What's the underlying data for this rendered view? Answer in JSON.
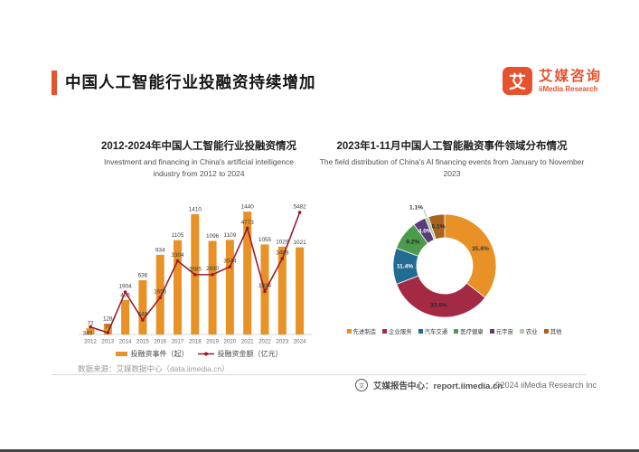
{
  "page": {
    "title": "中国人工智能行业投融资持续增加",
    "accent_color": "#E8512D",
    "logo": {
      "symbol": "艾",
      "name_cn": "艾媒咨询",
      "name_en": "iiMedia Research"
    },
    "source_note": "数据来源：艾媒数据中心（data.iimedia.cn）",
    "footer": {
      "report_center": "艾媒报告中心：report.iimedia.cn",
      "copyright": "©2024  iiMedia Research  Inc"
    }
  },
  "chart_data": [
    {
      "type": "bar",
      "subtype": "bar+line combo, dual hidden axes, data labels shown",
      "title": "2012-2024年中国人工智能行业投融资情况",
      "subtitle": "Investment and financing in China's artificial intelligence industry from 2012 to 2024",
      "categories": [
        "2012",
        "2013",
        "2014",
        "2015",
        "2016",
        "2017",
        "2018",
        "2019",
        "2020",
        "2021",
        "2022",
        "2023",
        "2024"
      ],
      "series": [
        {
          "name": "投融资事件（起）",
          "type": "bar",
          "color": "#E89126",
          "values": [
            72,
            128,
            405,
            636,
            934,
            1105,
            1410,
            1096,
            1109,
            1440,
            1055,
            1029,
            1021
          ]
        },
        {
          "name": "投融资金额（亿元）",
          "type": "line",
          "color": "#9A1B2E",
          "values": [
            340,
            79,
            1904,
            648,
            1656,
            3304,
            2685,
            2690,
            3044,
            4773,
            1934,
            3409,
            5482
          ]
        }
      ],
      "grid": false,
      "legend_position": "bottom"
    },
    {
      "type": "pie",
      "subtype": "donut",
      "title": "2023年1-11月中国人工智能融资事件领域分布情况",
      "subtitle": "The field distribution of China's AI financing events from January to November 2023",
      "slices": [
        {
          "label": "先进制造",
          "value": 35.6,
          "color": "#E89126",
          "text_color": "#3a3a3a"
        },
        {
          "label": "企业服务",
          "value": 33.6,
          "color": "#A42A44",
          "text_color": "#2b2b2b"
        },
        {
          "label": "汽车交通",
          "value": 11.4,
          "color": "#226B93",
          "text_color": "#ffffff"
        },
        {
          "label": "医疗健康",
          "value": 9.2,
          "color": "#4C9B4C",
          "text_color": "#2b2b2b"
        },
        {
          "label": "元宇宙",
          "value": 4.0,
          "color": "#5A3C77",
          "text_color": "#ffffff"
        },
        {
          "label": "农业",
          "value": 1.1,
          "color": "#B2CBAD",
          "text_color": "#333333",
          "label_outside": true
        },
        {
          "label": "其他",
          "value": 5.1,
          "color": "#A8641E",
          "text_color": "#2b2b2b"
        }
      ],
      "legend_position": "bottom"
    }
  ]
}
